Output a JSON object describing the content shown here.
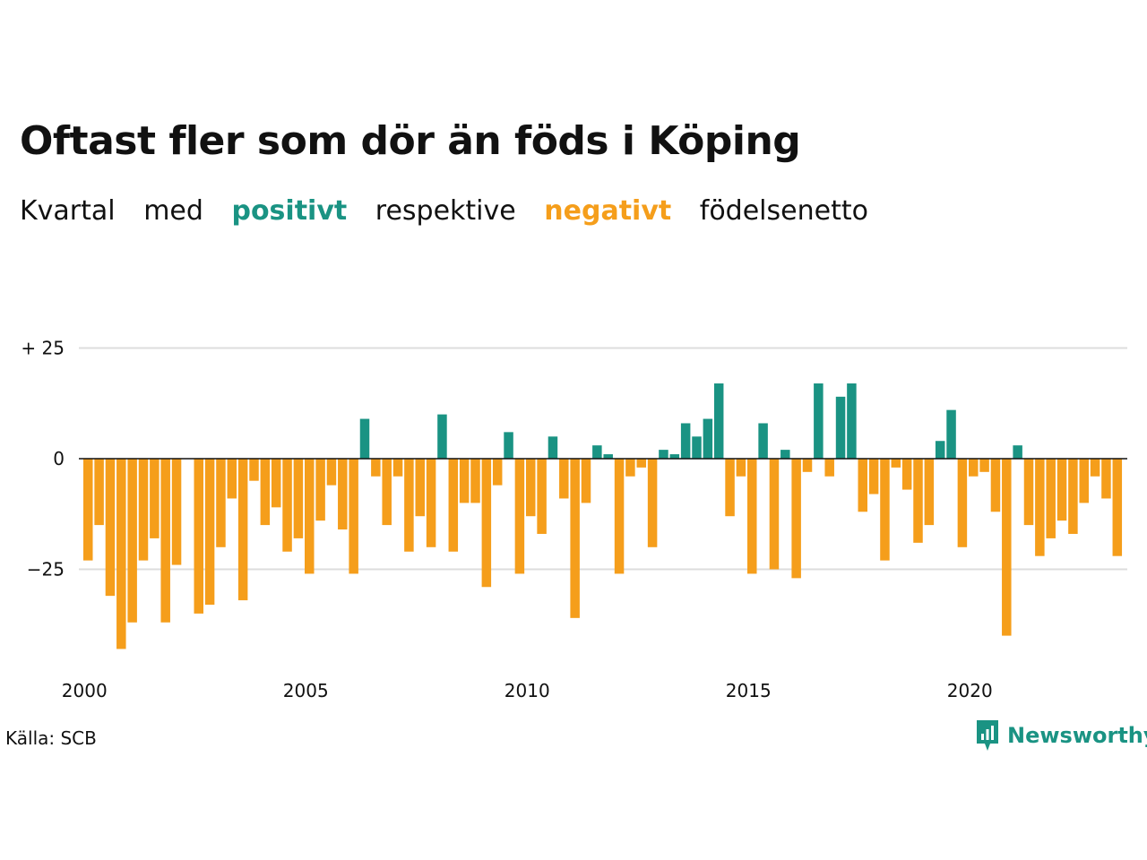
{
  "title": "Oftast fler som dör än föds i Köping",
  "subtitle": {
    "w1": "Kvartal",
    "w2": "med",
    "positive": "positivt",
    "w3": "respektive",
    "negative": "negativt",
    "w4": "födelsenetto"
  },
  "source": "Källa: SCB",
  "brand": "Newsworthy",
  "colors": {
    "positive": "#1a9383",
    "negative": "#f59e1b"
  },
  "chart_data": {
    "type": "bar",
    "x_start": "2000 Q1",
    "x_ticks": [
      "2000",
      "2005",
      "2010",
      "2015",
      "2020"
    ],
    "y_ticks": [
      "+ 25",
      "0",
      "−25"
    ],
    "ylim": [
      -46,
      30
    ],
    "grid": true,
    "values": [
      -23,
      -15,
      -31,
      -43,
      -37,
      -23,
      -18,
      -37,
      -24,
      0,
      -35,
      -33,
      -20,
      -9,
      -32,
      -5,
      -15,
      -11,
      -21,
      -18,
      -26,
      -14,
      -6,
      -16,
      -26,
      9,
      -4,
      -15,
      -4,
      -21,
      -13,
      -20,
      10,
      -21,
      -10,
      -10,
      -29,
      -6,
      6,
      -26,
      -13,
      -17,
      5,
      -9,
      -36,
      -10,
      3,
      1,
      -26,
      -4,
      -2,
      -20,
      2,
      1,
      8,
      5,
      9,
      17,
      -13,
      -4,
      -26,
      8,
      -25,
      2,
      -27,
      -3,
      17,
      -4,
      14,
      17,
      -12,
      -8,
      -23,
      -2,
      -7,
      -19,
      -15,
      4,
      11,
      -20,
      -4,
      -3,
      -12,
      -40,
      3,
      -15,
      -22,
      -18,
      -14,
      -17,
      -10,
      -4,
      -9,
      -22
    ]
  }
}
